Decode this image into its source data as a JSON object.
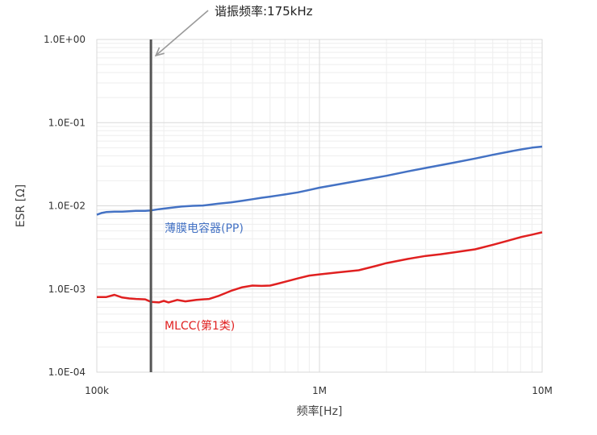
{
  "chart_data": {
    "type": "line",
    "x_scale": "log",
    "y_scale": "log",
    "xlabel": "频率[Hz]",
    "ylabel": "ESR [Ω]",
    "xlim": [
      100000,
      10000000
    ],
    "ylim": [
      0.0001,
      1
    ],
    "x_ticks": [
      {
        "value": 100000,
        "label": "100k"
      },
      {
        "value": 1000000,
        "label": "1M"
      },
      {
        "value": 10000000,
        "label": "10M"
      }
    ],
    "y_ticks": [
      {
        "value": 1,
        "label": "1.0E+00"
      },
      {
        "value": 0.1,
        "label": "1.0E-01"
      },
      {
        "value": 0.01,
        "label": "1.0E-02"
      },
      {
        "value": 0.001,
        "label": "1.0E-03"
      },
      {
        "value": 0.0001,
        "label": "1.0E-04"
      }
    ],
    "grid": true,
    "annotation": {
      "text": "谐振频率:175kHz",
      "x": 175000,
      "line_color": "#555555"
    },
    "series": [
      {
        "name": "薄膜电容器(PP)",
        "color": "#4472c4",
        "x": [
          100000,
          105000,
          110000,
          120000,
          130000,
          140000,
          150000,
          165000,
          175000,
          190000,
          210000,
          240000,
          270000,
          300000,
          350000,
          400000,
          450000,
          500000,
          550000,
          600000,
          650000,
          700000,
          800000,
          900000,
          1000000,
          1200000,
          1500000,
          2000000,
          2500000,
          3000000,
          4000000,
          5000000,
          6000000,
          7000000,
          8000000,
          9000000,
          10000000
        ],
        "y": [
          0.0078,
          0.0082,
          0.0084,
          0.0085,
          0.0085,
          0.0086,
          0.0087,
          0.0087,
          0.0088,
          0.0091,
          0.0094,
          0.0098,
          0.01,
          0.0101,
          0.0106,
          0.011,
          0.0115,
          0.012,
          0.0125,
          0.0129,
          0.0133,
          0.0137,
          0.0145,
          0.0155,
          0.0165,
          0.018,
          0.02,
          0.023,
          0.026,
          0.0285,
          0.033,
          0.037,
          0.041,
          0.0445,
          0.0475,
          0.05,
          0.0515
        ]
      },
      {
        "name": "MLCC(第1类)",
        "color": "#e02020",
        "x": [
          100000,
          110000,
          120000,
          130000,
          140000,
          150000,
          165000,
          175000,
          190000,
          200000,
          210000,
          230000,
          250000,
          280000,
          320000,
          350000,
          400000,
          450000,
          500000,
          550000,
          600000,
          650000,
          700000,
          800000,
          900000,
          1000000,
          1200000,
          1500000,
          1800000,
          2000000,
          2500000,
          3000000,
          3500000,
          4000000,
          5000000,
          6000000,
          7000000,
          8000000,
          9000000,
          10000000
        ],
        "y": [
          0.0008,
          0.0008,
          0.00085,
          0.00079,
          0.00077,
          0.00076,
          0.00075,
          0.0007,
          0.00069,
          0.00072,
          0.00069,
          0.00074,
          0.00071,
          0.00074,
          0.00076,
          0.00082,
          0.00095,
          0.00105,
          0.0011,
          0.00109,
          0.0011,
          0.00116,
          0.00122,
          0.00134,
          0.00145,
          0.0015,
          0.00158,
          0.00168,
          0.0019,
          0.00205,
          0.0023,
          0.0025,
          0.00262,
          0.00275,
          0.003,
          0.0034,
          0.0038,
          0.0042,
          0.0045,
          0.0048
        ]
      }
    ]
  }
}
